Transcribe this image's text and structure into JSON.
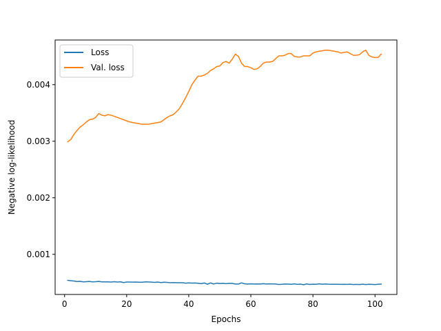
{
  "chart_data": {
    "type": "line",
    "title": "",
    "xlabel": "Epochs",
    "ylabel": "Negative log-likelihood",
    "xlim": [
      -3.05,
      107.05
    ],
    "ylim": [
      0.00029,
      0.00479
    ],
    "xticks": [
      0,
      20,
      40,
      60,
      80,
      100
    ],
    "xtick_labels": [
      "0",
      "20",
      "40",
      "60",
      "80",
      "100"
    ],
    "yticks": [
      0.001,
      0.002,
      0.003,
      0.004
    ],
    "ytick_labels": [
      "0.001",
      "0.002",
      "0.003",
      "0.004"
    ],
    "grid": false,
    "legend": {
      "position": "top-left"
    },
    "x": [
      1,
      2,
      3,
      4,
      5,
      6,
      7,
      8,
      9,
      10,
      11,
      12,
      13,
      14,
      15,
      16,
      17,
      18,
      19,
      20,
      21,
      22,
      23,
      24,
      25,
      26,
      27,
      28,
      29,
      30,
      31,
      32,
      33,
      34,
      35,
      36,
      37,
      38,
      39,
      40,
      41,
      42,
      43,
      44,
      45,
      46,
      47,
      48,
      49,
      50,
      51,
      52,
      53,
      54,
      55,
      56,
      57,
      58,
      59,
      60,
      61,
      62,
      63,
      64,
      65,
      66,
      67,
      68,
      69,
      70,
      71,
      72,
      73,
      74,
      75,
      76,
      77,
      78,
      79,
      80,
      81,
      82,
      83,
      84,
      85,
      86,
      87,
      88,
      89,
      90,
      91,
      92,
      93,
      94,
      95,
      96,
      97,
      98,
      99,
      100,
      101,
      102
    ],
    "series": [
      {
        "name": "Loss",
        "color": "#1f77b4",
        "values": [
          0.00054,
          0.000533,
          0.000528,
          0.000518,
          0.000522,
          0.000513,
          0.000516,
          0.00052,
          0.000513,
          0.000515,
          0.00052,
          0.000512,
          0.000512,
          0.000513,
          0.00051,
          0.000515,
          0.00051,
          0.000514,
          0.0005,
          0.00051,
          0.000509,
          0.000508,
          0.000509,
          0.000506,
          0.000507,
          0.000513,
          0.000511,
          0.000508,
          0.000504,
          0.00051,
          0.000501,
          0.000506,
          0.000504,
          0.000498,
          0.0005,
          0.000497,
          0.000497,
          0.000497,
          0.00049,
          0.000494,
          0.000492,
          0.000493,
          0.000488,
          0.000481,
          0.000493,
          0.00047,
          0.000494,
          0.000475,
          0.000489,
          0.000483,
          0.000487,
          0.00048,
          0.000486,
          0.000485,
          0.000475,
          0.000474,
          0.000495,
          0.000478,
          0.000475,
          0.000477,
          0.000474,
          0.000476,
          0.000474,
          0.000481,
          0.000474,
          0.000478,
          0.000476,
          0.000474,
          0.000467,
          0.00047,
          0.000475,
          0.000473,
          0.00047,
          0.000478,
          0.000468,
          0.000473,
          0.000462,
          0.000476,
          0.000467,
          0.000471,
          0.00047,
          0.000478,
          0.000471,
          0.000475,
          0.000471,
          0.00047,
          0.00047,
          0.00047,
          0.000468,
          0.00047,
          0.000469,
          0.000471,
          0.000466,
          0.000469,
          0.000466,
          0.000471,
          0.000465,
          0.00047,
          0.000469,
          0.000466,
          0.00047,
          0.000474
        ]
      },
      {
        "name": "Val. loss",
        "color": "#ff7f0e",
        "values": [
          0.00299,
          0.00303,
          0.00312,
          0.00319,
          0.00325,
          0.00329,
          0.00334,
          0.00338,
          0.00339,
          0.00342,
          0.00349,
          0.00346,
          0.00345,
          0.00347,
          0.00346,
          0.00344,
          0.00342,
          0.0034,
          0.00338,
          0.00336,
          0.00334,
          0.00333,
          0.00332,
          0.00331,
          0.0033,
          0.0033,
          0.0033,
          0.00331,
          0.00332,
          0.00333,
          0.00334,
          0.00338,
          0.00342,
          0.00345,
          0.00347,
          0.00352,
          0.00358,
          0.00367,
          0.00377,
          0.00388,
          0.004,
          0.00408,
          0.00415,
          0.00415,
          0.00417,
          0.0042,
          0.00425,
          0.00428,
          0.00432,
          0.00433,
          0.00439,
          0.00441,
          0.00438,
          0.00445,
          0.00454,
          0.0045,
          0.00438,
          0.00432,
          0.00432,
          0.0043,
          0.00427,
          0.00428,
          0.00432,
          0.00438,
          0.0044,
          0.0044,
          0.00441,
          0.00446,
          0.00451,
          0.00451,
          0.00452,
          0.00455,
          0.00455,
          0.0045,
          0.00449,
          0.00449,
          0.00451,
          0.00451,
          0.00451,
          0.00456,
          0.00458,
          0.00459,
          0.0046,
          0.00461,
          0.00461,
          0.0046,
          0.00459,
          0.00458,
          0.00456,
          0.00457,
          0.00458,
          0.00455,
          0.00452,
          0.00452,
          0.00453,
          0.00458,
          0.00461,
          0.00452,
          0.00449,
          0.00448,
          0.00448,
          0.00454
        ]
      }
    ]
  }
}
